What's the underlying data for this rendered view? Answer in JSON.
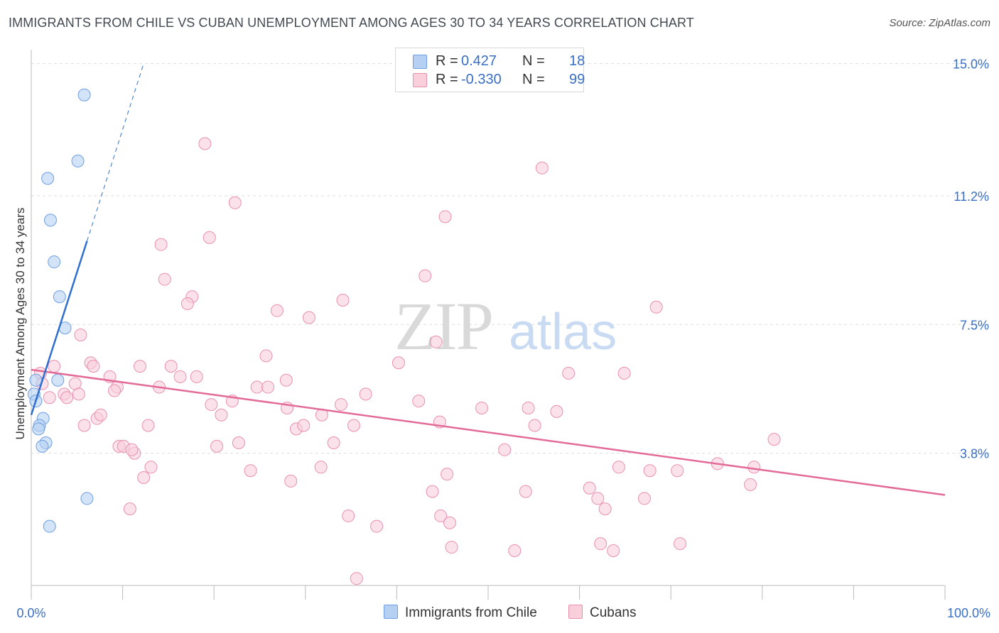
{
  "header": {
    "title": "IMMIGRANTS FROM CHILE VS CUBAN UNEMPLOYMENT AMONG AGES 30 TO 34 YEARS CORRELATION CHART",
    "source": "Source: ZipAtlas.com"
  },
  "watermark": {
    "zip": "ZIP",
    "atlas": "atlas"
  },
  "legend": {
    "rows": [
      {
        "r_label": "R =",
        "r_value": "0.427",
        "n_label": "N =",
        "n_value": "18",
        "color": "#a9c8f0",
        "border": "#6f9fe0"
      },
      {
        "r_label": "R =",
        "r_value": "-0.330",
        "n_label": "N = ",
        "n_value": "99",
        "color": "#f7c0d1",
        "border": "#e990ad"
      }
    ]
  },
  "chart_data": {
    "type": "scatter",
    "title": "IMMIGRANTS FROM CHILE VS CUBAN UNEMPLOYMENT AMONG AGES 30 TO 34 YEARS CORRELATION CHART",
    "xlabel": "",
    "ylabel": "Unemployment Among Ages 30 to 34 years",
    "xlim": [
      0,
      100
    ],
    "ylim": [
      0,
      15.4
    ],
    "x_tick_labels": [
      "0.0%",
      "100.0%"
    ],
    "y_ticks": [
      3.8,
      7.5,
      11.2,
      15.0
    ],
    "y_tick_labels": [
      "3.8%",
      "7.5%",
      "11.2%",
      "15.0%"
    ],
    "colors": {
      "chile": "#6f9fe0",
      "chile_fill": "#b6d0f3",
      "cuba": "#e990ad",
      "cuba_fill": "#f9cfdc",
      "chile_line": "#2f6fcf",
      "cuba_line": "#e36b98",
      "axis_text": "#3a6fc4",
      "grid": "#dddddd"
    },
    "series": [
      {
        "name": "Immigrants from Chile",
        "points": [
          [
            5.8,
            14.1
          ],
          [
            5.1,
            12.2
          ],
          [
            1.8,
            11.7
          ],
          [
            2.1,
            10.5
          ],
          [
            2.5,
            9.3
          ],
          [
            3.1,
            8.3
          ],
          [
            3.7,
            7.4
          ],
          [
            0.5,
            5.9
          ],
          [
            2.9,
            5.9
          ],
          [
            0.3,
            5.5
          ],
          [
            0.5,
            5.3
          ],
          [
            1.3,
            4.8
          ],
          [
            0.9,
            4.6
          ],
          [
            0.8,
            4.5
          ],
          [
            1.6,
            4.1
          ],
          [
            1.2,
            4.0
          ],
          [
            6.1,
            2.5
          ],
          [
            2.0,
            1.7
          ]
        ],
        "trend": {
          "x": [
            0,
            6.1
          ],
          "y": [
            4.9,
            9.9
          ]
        },
        "trend_ext": {
          "x": [
            6.1,
            12.3
          ],
          "y": [
            9.9,
            15.0
          ]
        }
      },
      {
        "name": "Cubans",
        "points": [
          [
            19,
            12.7
          ],
          [
            55.9,
            12.0
          ],
          [
            22.3,
            11.0
          ],
          [
            45.3,
            10.6
          ],
          [
            19.5,
            10.0
          ],
          [
            14.2,
            9.8
          ],
          [
            43.1,
            8.9
          ],
          [
            14.6,
            8.8
          ],
          [
            17.6,
            8.3
          ],
          [
            17.1,
            8.1
          ],
          [
            34.1,
            8.2
          ],
          [
            26.9,
            7.9
          ],
          [
            30.4,
            7.7
          ],
          [
            68.4,
            8.0
          ],
          [
            5.4,
            7.2
          ],
          [
            44.3,
            7.0
          ],
          [
            25.7,
            6.6
          ],
          [
            40.2,
            6.4
          ],
          [
            6.5,
            6.4
          ],
          [
            2.5,
            6.3
          ],
          [
            6.8,
            6.3
          ],
          [
            11.9,
            6.3
          ],
          [
            15.3,
            6.3
          ],
          [
            1.0,
            6.1
          ],
          [
            8.6,
            6.0
          ],
          [
            16.3,
            6.0
          ],
          [
            18.1,
            6.0
          ],
          [
            27.9,
            5.9
          ],
          [
            58.8,
            6.1
          ],
          [
            64.9,
            6.1
          ],
          [
            1.2,
            5.8
          ],
          [
            4.8,
            5.8
          ],
          [
            9.4,
            5.7
          ],
          [
            24.7,
            5.7
          ],
          [
            25.9,
            5.7
          ],
          [
            9.1,
            5.6
          ],
          [
            14.0,
            5.7
          ],
          [
            2.0,
            5.4
          ],
          [
            3.6,
            5.5
          ],
          [
            3.9,
            5.4
          ],
          [
            5.2,
            5.5
          ],
          [
            22.0,
            5.3
          ],
          [
            19.7,
            5.2
          ],
          [
            28.0,
            5.1
          ],
          [
            33.9,
            5.2
          ],
          [
            36.6,
            5.5
          ],
          [
            42.4,
            5.3
          ],
          [
            49.3,
            5.1
          ],
          [
            54.4,
            5.1
          ],
          [
            57.5,
            5.0
          ],
          [
            20.8,
            4.9
          ],
          [
            31.8,
            4.9
          ],
          [
            7.2,
            4.8
          ],
          [
            7.6,
            4.9
          ],
          [
            5.8,
            4.6
          ],
          [
            12.8,
            4.6
          ],
          [
            29.0,
            4.5
          ],
          [
            29.8,
            4.6
          ],
          [
            35.3,
            4.6
          ],
          [
            44.7,
            4.7
          ],
          [
            55.1,
            4.6
          ],
          [
            81.3,
            4.2
          ],
          [
            9.6,
            4.0
          ],
          [
            10.1,
            4.0
          ],
          [
            20.3,
            4.0
          ],
          [
            22.7,
            4.1
          ],
          [
            33.1,
            4.1
          ],
          [
            11.3,
            3.8
          ],
          [
            51.8,
            3.9
          ],
          [
            13.1,
            3.4
          ],
          [
            24.0,
            3.3
          ],
          [
            31.7,
            3.4
          ],
          [
            64.3,
            3.4
          ],
          [
            67.7,
            3.3
          ],
          [
            70.7,
            3.3
          ],
          [
            75.1,
            3.5
          ],
          [
            79.1,
            3.4
          ],
          [
            12.3,
            3.1
          ],
          [
            28.4,
            3.0
          ],
          [
            43.9,
            2.7
          ],
          [
            54.1,
            2.7
          ],
          [
            61.1,
            2.8
          ],
          [
            67.1,
            2.5
          ],
          [
            78.7,
            2.9
          ],
          [
            10.8,
            2.2
          ],
          [
            62.0,
            2.5
          ],
          [
            62.8,
            2.2
          ],
          [
            34.7,
            2.0
          ],
          [
            37.8,
            1.7
          ],
          [
            44.8,
            2.0
          ],
          [
            45.8,
            1.8
          ],
          [
            46.0,
            1.1
          ],
          [
            52.9,
            1.0
          ],
          [
            62.3,
            1.2
          ],
          [
            63.7,
            1.0
          ],
          [
            71.0,
            1.2
          ],
          [
            35.6,
            0.2
          ],
          [
            11.0,
            3.9
          ],
          [
            45.5,
            3.2
          ]
        ],
        "trend": {
          "x": [
            0,
            100
          ],
          "y": [
            6.2,
            2.6
          ]
        }
      }
    ]
  },
  "bottom_legend": [
    {
      "label": "Immigrants from Chile",
      "color": "#b6d0f3",
      "border": "#6f9fe0"
    },
    {
      "label": "Cubans",
      "color": "#f9cfdc",
      "border": "#e990ad"
    }
  ]
}
